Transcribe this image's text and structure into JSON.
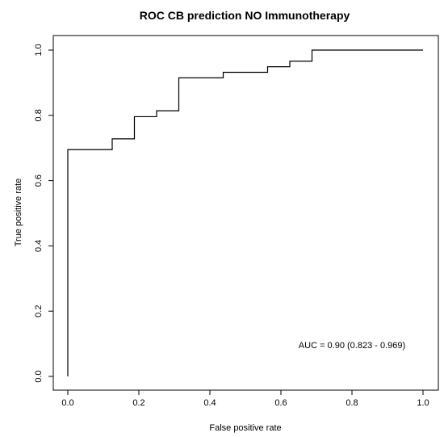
{
  "chart_data": {
    "type": "line",
    "title": "ROC CB prediction NO Immunotherapy",
    "xlabel": "False positive rate",
    "ylabel": "True positive rate",
    "xlim": [
      0,
      1
    ],
    "ylim": [
      0,
      1
    ],
    "x_ticks": [
      0.0,
      0.2,
      0.4,
      0.6,
      0.8,
      1.0
    ],
    "x_tick_labels": [
      "0.0",
      "0.2",
      "0.4",
      "0.6",
      "0.8",
      "1.0"
    ],
    "y_ticks": [
      0.0,
      0.2,
      0.4,
      0.6,
      0.8,
      1.0
    ],
    "y_tick_labels": [
      "0.0",
      "0.2",
      "0.4",
      "0.6",
      "0.8",
      "1.0"
    ],
    "grid": false,
    "annotation": "AUC = 0.90 (0.823 - 0.969)",
    "series": [
      {
        "style": "step",
        "color": "#000000",
        "x": [
          0.0,
          0.0,
          0.125,
          0.125,
          0.1875,
          0.1875,
          0.25,
          0.25,
          0.3125,
          0.3125,
          0.4375,
          0.4375,
          0.5625,
          0.5625,
          0.625,
          0.625,
          0.6875,
          0.6875,
          1.0
        ],
        "y": [
          0.0,
          0.695,
          0.695,
          0.728,
          0.728,
          0.796,
          0.796,
          0.814,
          0.814,
          0.915,
          0.915,
          0.932,
          0.932,
          0.949,
          0.949,
          0.966,
          0.966,
          1.0,
          1.0
        ]
      }
    ]
  }
}
